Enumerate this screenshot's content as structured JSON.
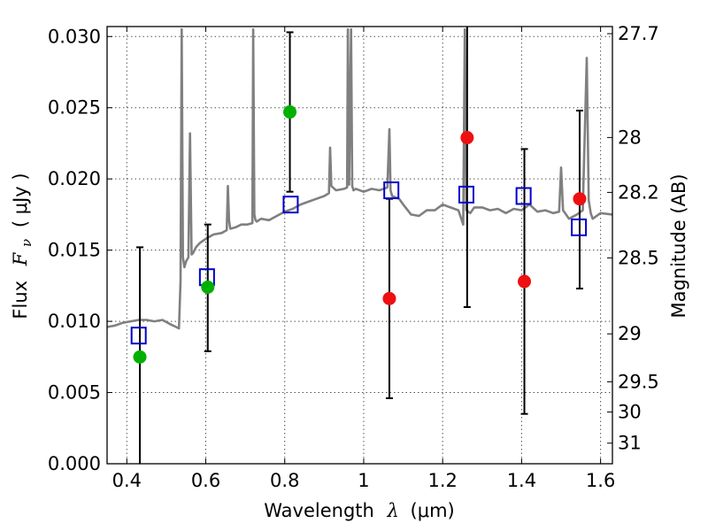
{
  "chart_data": {
    "type": "scatter",
    "title": "",
    "xlabel_text": "Wavelength",
    "xlabel_symbol": "λ",
    "xlabel_unit": "(μm)",
    "ylabel_text": "Flux",
    "ylabel_symbol": "F",
    "ylabel_subscript": "ν",
    "ylabel_unit": "( μJy )",
    "y2label": "Magnitude (AB)",
    "xlim": [
      0.35,
      1.63
    ],
    "ylim": [
      0.0,
      0.0307
    ],
    "grid": true,
    "x_ticks": [
      {
        "value": 0.4,
        "label": "0.4"
      },
      {
        "value": 0.6,
        "label": "0.6"
      },
      {
        "value": 0.8,
        "label": "0.8"
      },
      {
        "value": 1.0,
        "label": "1"
      },
      {
        "value": 1.2,
        "label": "1.2"
      },
      {
        "value": 1.4,
        "label": "1.4"
      },
      {
        "value": 1.6,
        "label": "1.6"
      }
    ],
    "y_ticks": [
      {
        "value": 0.0,
        "label": "0.000"
      },
      {
        "value": 0.005,
        "label": "0.005"
      },
      {
        "value": 0.01,
        "label": "0.010"
      },
      {
        "value": 0.015,
        "label": "0.015"
      },
      {
        "value": 0.02,
        "label": "0.020"
      },
      {
        "value": 0.025,
        "label": "0.025"
      },
      {
        "value": 0.03,
        "label": "0.030"
      }
    ],
    "y2_ticks": [
      {
        "value": 27.7,
        "label": "27.7"
      },
      {
        "value": 28,
        "label": "28"
      },
      {
        "value": 28.2,
        "label": "28.2"
      },
      {
        "value": 28.5,
        "label": "28.5"
      },
      {
        "value": 29,
        "label": "29"
      },
      {
        "value": 29.5,
        "label": "29.5"
      },
      {
        "value": 30,
        "label": "30"
      },
      {
        "value": 31,
        "label": "31"
      }
    ],
    "colors": {
      "model": "#808080",
      "model_photometry": "#0000cc",
      "detection": "#00b000",
      "upper_limit": "#ee1010",
      "errorbar": "#000000",
      "grid": "#555555"
    },
    "model_spectrum": {
      "x": [
        0.35,
        0.37,
        0.39,
        0.41,
        0.43,
        0.45,
        0.47,
        0.49,
        0.51,
        0.525,
        0.532,
        0.536,
        0.539,
        0.542,
        0.546,
        0.55,
        0.556,
        0.56,
        0.564,
        0.568,
        0.575,
        0.585,
        0.595,
        0.6,
        0.62,
        0.64,
        0.653,
        0.656,
        0.659,
        0.662,
        0.675,
        0.69,
        0.705,
        0.718,
        0.72,
        0.723,
        0.726,
        0.729,
        0.74,
        0.76,
        0.78,
        0.8,
        0.82,
        0.84,
        0.86,
        0.88,
        0.9,
        0.912,
        0.915,
        0.918,
        0.93,
        0.95,
        0.958,
        0.96,
        0.963,
        0.968,
        0.971,
        0.974,
        0.98,
        1.0,
        1.02,
        1.04,
        1.06,
        1.065,
        1.068,
        1.072,
        1.09,
        1.1,
        1.12,
        1.14,
        1.16,
        1.18,
        1.2,
        1.22,
        1.24,
        1.252,
        1.256,
        1.26,
        1.27,
        1.28,
        1.29,
        1.3,
        1.32,
        1.34,
        1.36,
        1.38,
        1.4,
        1.42,
        1.44,
        1.46,
        1.48,
        1.495,
        1.5,
        1.505,
        1.51,
        1.52,
        1.54,
        1.555,
        1.565,
        1.57,
        1.575,
        1.58,
        1.6,
        1.63
      ],
      "y": [
        0.0096,
        0.0097,
        0.0099,
        0.01,
        0.0101,
        0.0101,
        0.01,
        0.0101,
        0.0098,
        0.0096,
        0.0095,
        0.0128,
        0.0305,
        0.0145,
        0.0138,
        0.0142,
        0.0145,
        0.0232,
        0.0147,
        0.0148,
        0.0152,
        0.0155,
        0.0157,
        0.0158,
        0.0161,
        0.0162,
        0.0164,
        0.0195,
        0.0171,
        0.0165,
        0.0166,
        0.0168,
        0.0168,
        0.0169,
        0.0305,
        0.0175,
        0.0171,
        0.017,
        0.0172,
        0.0171,
        0.0174,
        0.0177,
        0.0179,
        0.0182,
        0.0184,
        0.0186,
        0.0188,
        0.019,
        0.0222,
        0.0195,
        0.0192,
        0.0193,
        0.0194,
        0.0305,
        0.0196,
        0.0305,
        0.0195,
        0.0192,
        0.0193,
        0.0191,
        0.0193,
        0.0192,
        0.0194,
        0.0235,
        0.0192,
        0.0188,
        0.0186,
        0.0182,
        0.0175,
        0.0174,
        0.0178,
        0.0178,
        0.0182,
        0.018,
        0.0178,
        0.0168,
        0.0305,
        0.0178,
        0.0176,
        0.018,
        0.018,
        0.018,
        0.0178,
        0.0179,
        0.0176,
        0.0179,
        0.0178,
        0.0182,
        0.0177,
        0.0178,
        0.0176,
        0.0177,
        0.0208,
        0.0178,
        0.0176,
        0.0172,
        0.0175,
        0.0178,
        0.0285,
        0.0185,
        0.0176,
        0.0172,
        0.0176,
        0.0175
      ]
    },
    "series": [
      {
        "marker": "open-square",
        "x": [
          0.43,
          0.603,
          0.815,
          1.07,
          1.26,
          1.405,
          1.545
        ],
        "y": [
          0.009,
          0.0131,
          0.0182,
          0.0192,
          0.0189,
          0.0188,
          0.0166
        ]
      },
      {
        "marker": "filled-circle",
        "x": [
          0.433,
          0.605,
          0.813
        ],
        "y": [
          0.0075,
          0.0124,
          0.0247
        ],
        "yerr_low": [
          0.0,
          0.0079,
          0.0191
        ],
        "yerr_high": [
          0.0152,
          0.0168,
          0.0303
        ]
      },
      {
        "marker": "filled-circle",
        "x": [
          1.065,
          1.262,
          1.407,
          1.547
        ],
        "y": [
          0.0116,
          0.0229,
          0.0128,
          0.0186
        ],
        "yerr_low": [
          0.0046,
          0.011,
          0.0035,
          0.0123
        ],
        "yerr_high": [
          0.0186,
          0.0307,
          0.0221,
          0.0248
        ]
      }
    ]
  }
}
